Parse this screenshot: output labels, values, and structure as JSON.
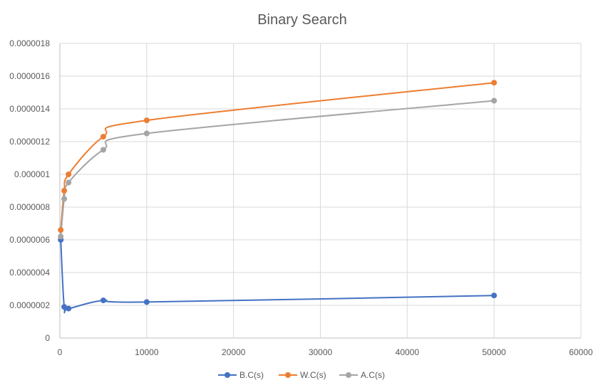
{
  "chart_data": {
    "type": "scatter",
    "title": "Binary Search",
    "xlabel": "",
    "ylabel": "",
    "xlim": [
      0,
      60000
    ],
    "ylim": [
      0,
      1.8e-06
    ],
    "x_ticks": [
      "0",
      "10000",
      "20000",
      "30000",
      "40000",
      "50000",
      "60000"
    ],
    "y_ticks": [
      "0",
      "0.0000002",
      "0.0000004",
      "0.0000006",
      "0.0000008",
      "0.000001",
      "0.0000012",
      "0.0000014",
      "0.0000016",
      "0.0000018"
    ],
    "grid": true,
    "legend_position": "bottom",
    "series": [
      {
        "name": "B.C(s)",
        "color": "#4472C4",
        "x": [
          100,
          500,
          1000,
          5000,
          10000,
          50000
        ],
        "y": [
          6e-07,
          1.9e-07,
          1.8e-07,
          2.3e-07,
          2.2e-07,
          2.6e-07
        ]
      },
      {
        "name": "W.C(s)",
        "color": "#ED7D31",
        "x": [
          100,
          500,
          1000,
          5000,
          10000,
          50000
        ],
        "y": [
          6.6e-07,
          9e-07,
          1e-06,
          1.23e-06,
          1.33e-06,
          1.56e-06
        ]
      },
      {
        "name": "A.C(s)",
        "color": "#A5A5A5",
        "x": [
          100,
          500,
          1000,
          5000,
          10000,
          50000
        ],
        "y": [
          6.2e-07,
          8.5e-07,
          9.5e-07,
          1.15e-06,
          1.25e-06,
          1.45e-06
        ]
      }
    ]
  }
}
